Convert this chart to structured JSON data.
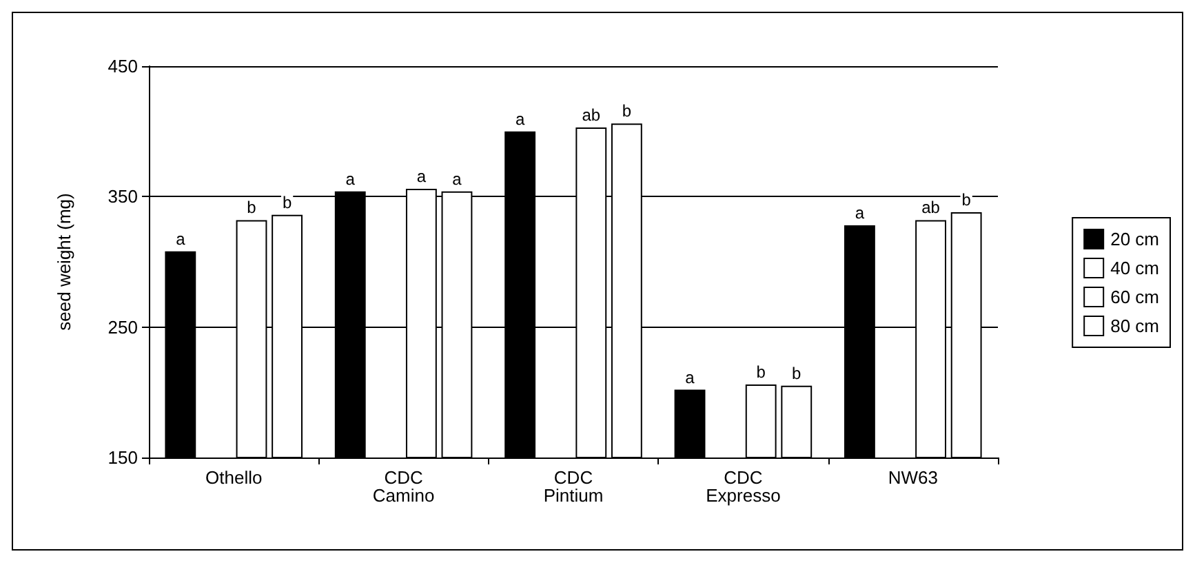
{
  "chart_data": {
    "type": "bar",
    "ylabel": "seed weight (mg)",
    "categories": [
      "Othello",
      "CDC\nCamino",
      "CDC\nPintium",
      "CDC\nExpresso",
      "NW63"
    ],
    "series": [
      {
        "name": "20 cm",
        "color": "#000000",
        "values": [
          308,
          354,
          400,
          202,
          328
        ],
        "value_labels": [
          "a",
          "a",
          "a",
          "a",
          "a"
        ]
      },
      {
        "name": "40 cm",
        "color": "#ffffff",
        "values": [
          null,
          null,
          null,
          null,
          null
        ]
      },
      {
        "name": "60 cm",
        "color": "#ffffff",
        "values": [
          332,
          356,
          403,
          206,
          332
        ],
        "value_labels": [
          "b",
          "a",
          "ab",
          "b",
          "ab"
        ]
      },
      {
        "name": "80 cm",
        "color": "#ffffff",
        "values": [
          336,
          354,
          406,
          205,
          338
        ],
        "value_labels": [
          "b",
          "a",
          "b",
          "b",
          "b"
        ]
      }
    ],
    "ylim": [
      150,
      450
    ],
    "yticks": [
      150,
      250,
      350,
      450
    ],
    "grid": "y",
    "legend": "right"
  }
}
